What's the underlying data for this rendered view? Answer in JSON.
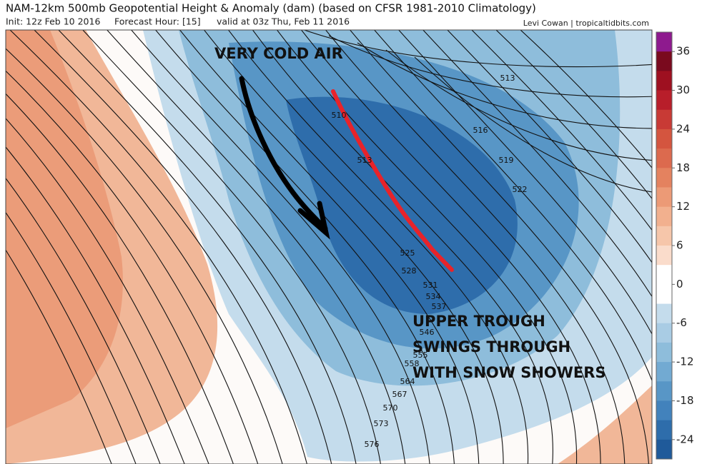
{
  "header": {
    "title": "NAM-12km 500mb Geopotential Height & Anomaly (dam) (based on CFSR 1981-2010 Climatology)",
    "init": "Init: 12z Feb 10 2016",
    "forecast_hour": "Forecast Hour: [15]",
    "valid": "valid at 03z Thu, Feb 11 2016",
    "credit": "Levi Cowan | tropicaltidbits.com"
  },
  "annotations": {
    "cold_air": "VERY COLD AIR",
    "trough": [
      "UPPER TROUGH",
      "SWINGS THROUGH",
      "WITH SNOW SHOWERS"
    ]
  },
  "contour_labels": [
    513,
    516,
    519,
    522,
    510,
    513,
    525,
    528,
    531,
    534,
    537,
    546,
    555,
    558,
    564,
    567,
    570,
    573,
    576
  ],
  "colorbar": {
    "lim": [
      -27,
      39
    ],
    "ticks": [
      36,
      30,
      24,
      18,
      12,
      6,
      0,
      -6,
      -12,
      -18,
      -24
    ],
    "colors": [
      "#8e1a8e",
      "#7a0a1e",
      "#9e1020",
      "#b81e2a",
      "#c83a35",
      "#d4553f",
      "#dc6a4e",
      "#e4825f",
      "#ec9a76",
      "#f2b08e",
      "#f6c6aa",
      "#fadccb",
      "#ffffff",
      "#ffffff",
      "#c4dcec",
      "#a9cce4",
      "#8ebddb",
      "#72aad2",
      "#5896c6",
      "#4282bc",
      "#2e6dab",
      "#1f5a9a"
    ]
  }
}
